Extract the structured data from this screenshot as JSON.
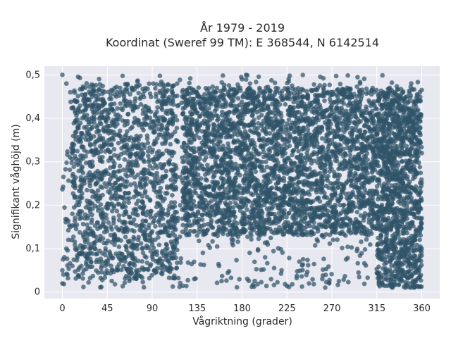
{
  "chart_data": {
    "type": "scatter",
    "title_line1": "År 1979 - 2019",
    "title_line2": "Koordinat (Sweref 99 TM): E 368544, N 6142514",
    "xlabel": "Vågriktning (grader)",
    "ylabel": "Signifikant våghöjd (m)",
    "xlim": [
      -18,
      378
    ],
    "ylim": [
      -0.015,
      0.52
    ],
    "xticks": [
      0,
      45,
      90,
      135,
      180,
      225,
      270,
      315,
      360
    ],
    "xtick_labels": [
      "0",
      "45",
      "90",
      "135",
      "180",
      "225",
      "270",
      "315",
      "360"
    ],
    "yticks": [
      0,
      0.1,
      0.2,
      0.3,
      0.4,
      0.5
    ],
    "ytick_labels": [
      "0",
      "0,1",
      "0,2",
      "0,3",
      "0,4",
      "0,5"
    ],
    "grid": true,
    "background": "#e8e8f0",
    "marker_color": "#2f5368",
    "points_description_density": [
      {
        "x": [
          0,
          360
        ],
        "y_min": 0.01,
        "y_max": 0.5
      },
      {
        "x": [
          10,
          115
        ],
        "y_min": 0.03,
        "y_max": 0.48
      },
      {
        "x": [
          120,
          315
        ],
        "y_min": 0.13,
        "y_max": 0.47
      },
      {
        "x": [
          315,
          360
        ],
        "y_min": 0.01,
        "y_max": 0.47
      }
    ],
    "series": [
      {
        "x": [
          0,
          2,
          4,
          6,
          8,
          10,
          14,
          18,
          22,
          26,
          30,
          34,
          38,
          42,
          46,
          50,
          54,
          58,
          62,
          66,
          70,
          74,
          78,
          82,
          86,
          90,
          94,
          98,
          102,
          106,
          110,
          114,
          118,
          122,
          126,
          130,
          134,
          138,
          142,
          146,
          150,
          154,
          158,
          162,
          166,
          170,
          174,
          178,
          182,
          186,
          190,
          194,
          198,
          202,
          206,
          210,
          214,
          218,
          222,
          226,
          230,
          234,
          238,
          242,
          246,
          250,
          254,
          258,
          262,
          266,
          270,
          274,
          278,
          282,
          286,
          290,
          294,
          298,
          302,
          306,
          310,
          314,
          318,
          322,
          326,
          330,
          334,
          338,
          342,
          346,
          350,
          354,
          358,
          360,
          0,
          5,
          10,
          15,
          20,
          25,
          30,
          35,
          40,
          45,
          50,
          55,
          60,
          65,
          70,
          75,
          80,
          85,
          90,
          95,
          100,
          105,
          110,
          115,
          120,
          125,
          130,
          135,
          140,
          145,
          150,
          155,
          160,
          165,
          170,
          175,
          180,
          185,
          190,
          195,
          200,
          205,
          210,
          215,
          220,
          225,
          230,
          235,
          240,
          245,
          250,
          255,
          260,
          265,
          270,
          275,
          280,
          285,
          290,
          295,
          300,
          305,
          310,
          315,
          320,
          325,
          330,
          335,
          340,
          345,
          350,
          355,
          360,
          0,
          4,
          8,
          12,
          16,
          20,
          24,
          28,
          32,
          36,
          40,
          44,
          48,
          52,
          56,
          60,
          64,
          68,
          72,
          76,
          80,
          84,
          88,
          92,
          96,
          100,
          104,
          108,
          112,
          116,
          120,
          124,
          128,
          132,
          136,
          140,
          144,
          148,
          152,
          156,
          160,
          164,
          168,
          172,
          176,
          180,
          184,
          188,
          192,
          196,
          200,
          204,
          208,
          212,
          216,
          220,
          224,
          228,
          232,
          236,
          240,
          244,
          248,
          252,
          256,
          260,
          264,
          268,
          272,
          276,
          280,
          284,
          288,
          292,
          296,
          300,
          304,
          308,
          312,
          316,
          320,
          324,
          328,
          332,
          336,
          340,
          344,
          348,
          352,
          356,
          360
        ],
        "y": [
          0.05,
          0.08,
          0.1,
          0.12,
          0.15,
          0.18,
          0.2,
          0.22,
          0.25,
          0.27,
          0.3,
          0.32,
          0.35,
          0.37,
          0.4,
          0.42,
          0.45,
          0.46,
          0.44,
          0.41,
          0.38,
          0.35,
          0.33,
          0.3,
          0.28,
          0.25,
          0.23,
          0.2,
          0.18,
          0.16,
          0.15,
          0.17,
          0.2,
          0.22,
          0.25,
          0.28,
          0.3,
          0.33,
          0.35,
          0.38,
          0.4,
          0.43,
          0.45,
          0.47,
          0.46,
          0.44,
          0.42,
          0.4,
          0.38,
          0.36,
          0.34,
          0.32,
          0.3,
          0.28,
          0.26,
          0.24,
          0.22,
          0.2,
          0.18,
          0.16,
          0.15,
          0.17,
          0.19,
          0.21,
          0.23,
          0.25,
          0.27,
          0.29,
          0.31,
          0.33,
          0.35,
          0.37,
          0.39,
          0.41,
          0.43,
          0.45,
          0.44,
          0.42,
          0.4,
          0.38,
          0.36,
          0.34,
          0.32,
          0.3,
          0.28,
          0.26,
          0.24,
          0.22,
          0.2,
          0.18,
          0.16,
          0.14,
          0.12,
          0.1,
          0.02,
          0.04,
          0.06,
          0.08,
          0.1,
          0.12,
          0.14,
          0.16,
          0.18,
          0.2,
          0.22,
          0.24,
          0.26,
          0.28,
          0.3,
          0.32,
          0.34,
          0.36,
          0.38,
          0.4,
          0.42,
          0.44,
          0.46,
          0.48,
          0.45,
          0.43,
          0.41,
          0.39,
          0.37,
          0.35,
          0.33,
          0.31,
          0.29,
          0.27,
          0.25,
          0.23,
          0.21,
          0.19,
          0.17,
          0.15,
          0.14,
          0.16,
          0.18,
          0.2,
          0.22,
          0.24,
          0.26,
          0.28,
          0.3,
          0.32,
          0.34,
          0.36,
          0.38,
          0.4,
          0.42,
          0.44,
          0.46,
          0.47,
          0.45,
          0.43,
          0.41,
          0.39,
          0.37,
          0.35,
          0.33,
          0.31,
          0.29,
          0.27,
          0.25,
          0.23,
          0.21,
          0.19,
          0.17,
          0.5,
          0.48,
          0.46,
          0.44,
          0.42,
          0.4,
          0.38,
          0.36,
          0.34,
          0.32,
          0.3,
          0.28,
          0.26,
          0.24,
          0.22,
          0.2,
          0.18,
          0.16,
          0.14,
          0.12,
          0.1,
          0.08,
          0.06,
          0.05,
          0.07,
          0.09,
          0.11,
          0.13,
          0.15,
          0.17,
          0.19,
          0.21,
          0.23,
          0.25,
          0.27,
          0.29,
          0.31,
          0.33,
          0.35,
          0.37,
          0.39,
          0.41,
          0.43,
          0.45,
          0.47,
          0.49,
          0.5,
          0.48,
          0.46,
          0.44,
          0.42,
          0.4,
          0.38,
          0.36,
          0.34,
          0.32,
          0.3,
          0.28,
          0.26,
          0.24,
          0.22,
          0.2,
          0.18,
          0.16,
          0.14,
          0.13,
          0.15,
          0.17,
          0.19,
          0.21,
          0.23,
          0.25,
          0.27,
          0.29,
          0.31,
          0.33,
          0.35,
          0.37,
          0.39,
          0.41,
          0.43,
          0.45,
          0.47,
          0.46,
          0.44,
          0.42,
          0.4,
          0.38,
          0.36,
          0.34,
          0.32
        ]
      }
    ]
  }
}
